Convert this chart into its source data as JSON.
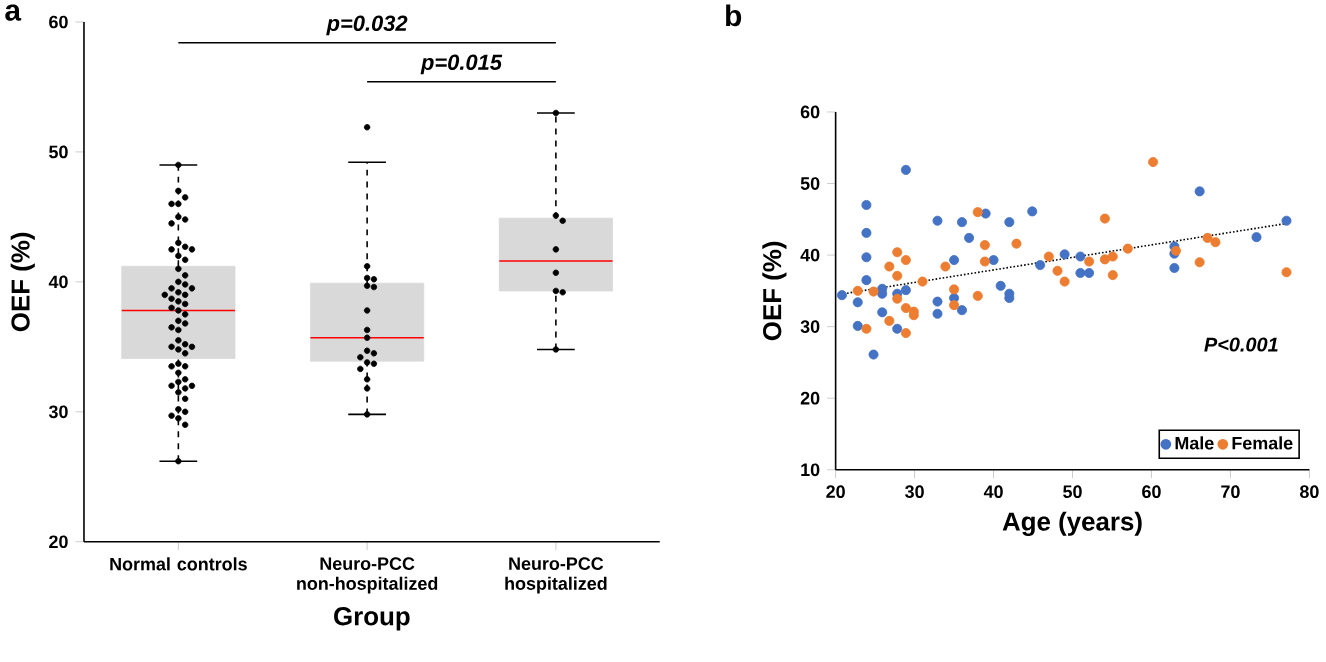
{
  "chart_data": [
    {
      "type": "box",
      "title": "a",
      "xlabel": "Group",
      "ylabel": "OEF (%)",
      "categories": [
        "Normal controls",
        "Neuro-PCC non-hospitalized",
        "Neuro-PCC hospitalized"
      ],
      "ylim": [
        20,
        60
      ],
      "yticks": [
        20,
        30,
        40,
        50,
        60
      ],
      "grid": false,
      "legend": false,
      "annotations": [
        "p=0.032",
        "p=0.015"
      ],
      "series": [
        {
          "type": "box",
          "color": "#d9d9d9",
          "boxes": [
            {
              "low": 26.2,
              "q1": 34.1,
              "median": 37.8,
              "q3": 41.2,
              "high": 49
            },
            {
              "low": 29.8,
              "q1": 33.9,
              "median": 35.7,
              "q3": 39.9,
              "high": 49.2
            },
            {
              "low": 34.8,
              "q1": 39.3,
              "median": 41.6,
              "q3": 44.9,
              "high": 53
            }
          ]
        },
        {
          "type": "scatter",
          "color": "#000000",
          "marker": "circle",
          "x": [
            "Normal controls",
            "Normal controls",
            "Normal controls",
            "Normal controls",
            "Normal controls",
            "Normal controls",
            "Normal controls",
            "Normal controls",
            "Normal controls",
            "Normal controls",
            "Normal controls",
            "Normal controls",
            "Normal controls",
            "Normal controls",
            "Normal controls",
            "Normal controls",
            "Normal controls",
            "Normal controls",
            "Normal controls",
            "Normal controls",
            "Normal controls",
            "Normal controls",
            "Normal controls",
            "Normal controls",
            "Normal controls",
            "Normal controls",
            "Normal controls",
            "Normal controls",
            "Normal controls",
            "Normal controls",
            "Normal controls",
            "Normal controls",
            "Normal controls",
            "Normal controls",
            "Normal controls",
            "Normal controls",
            "Normal controls",
            "Normal controls",
            "Normal controls",
            "Normal controls",
            "Normal controls",
            "Normal controls",
            "Normal controls",
            "Normal controls",
            "Normal controls",
            "Normal controls",
            "Normal controls",
            "Normal controls",
            "Normal controls",
            "Normal controls",
            "Normal controls",
            "Normal controls",
            "Normal controls",
            "Normal controls",
            "Normal controls",
            "Normal controls",
            "Neuro-PCC non-hospitalized",
            "Neuro-PCC non-hospitalized",
            "Neuro-PCC non-hospitalized",
            "Neuro-PCC non-hospitalized",
            "Neuro-PCC non-hospitalized",
            "Neuro-PCC non-hospitalized",
            "Neuro-PCC non-hospitalized",
            "Neuro-PCC non-hospitalized",
            "Neuro-PCC non-hospitalized",
            "Neuro-PCC non-hospitalized",
            "Neuro-PCC non-hospitalized",
            "Neuro-PCC non-hospitalized",
            "Neuro-PCC non-hospitalized",
            "Neuro-PCC non-hospitalized",
            "Neuro-PCC non-hospitalized",
            "Neuro-PCC non-hospitalized",
            "Neuro-PCC non-hospitalized",
            "Neuro-PCC non-hospitalized",
            "Neuro-PCC hospitalized",
            "Neuro-PCC hospitalized",
            "Neuro-PCC hospitalized",
            "Neuro-PCC hospitalized",
            "Neuro-PCC hospitalized",
            "Neuro-PCC hospitalized",
            "Neuro-PCC hospitalized",
            "Neuro-PCC hospitalized"
          ],
          "values": [
            49,
            47,
            46.5,
            46,
            46,
            45,
            44.8,
            44.5,
            43,
            42.7,
            42.5,
            42.5,
            42,
            41.7,
            41,
            40.5,
            40,
            39.8,
            39.5,
            39.5,
            39.2,
            39,
            39,
            38.7,
            38.5,
            38.3,
            38,
            37.8,
            37.5,
            37,
            36.8,
            36.5,
            36.3,
            35.5,
            35.2,
            35,
            35,
            34.8,
            34.5,
            33.7,
            33.5,
            33.5,
            33,
            32.5,
            32.3,
            32,
            32,
            31.8,
            31.5,
            31,
            30.2,
            30,
            29.7,
            29.5,
            29,
            26.2,
            51.9,
            41.2,
            40.3,
            40.2,
            39.7,
            39.6,
            37.8,
            36.3,
            35.7,
            34.7,
            34.5,
            34.2,
            33.8,
            33.7,
            33.3,
            32.5,
            31.8,
            29.8,
            53,
            45.1,
            44.7,
            42.5,
            40.7,
            39.3,
            39.2,
            34.8
          ]
        }
      ]
    },
    {
      "type": "scatter",
      "title": "b",
      "xlabel": "Age (years)",
      "ylabel": "OEF (%)",
      "xlim": [
        20,
        80
      ],
      "xticks": [
        20,
        30,
        40,
        50,
        60,
        70,
        80
      ],
      "ylim": [
        10,
        60
      ],
      "yticks": [
        10,
        20,
        30,
        40,
        50,
        60
      ],
      "grid": false,
      "legend": "bottom right",
      "marker": "circle",
      "annotations": [
        "P<0.001"
      ],
      "series": [
        {
          "name": "Male",
          "color": "#4472c4",
          "x": [
            20.8,
            22.8,
            22.8,
            23.9,
            23.9,
            23.9,
            23.9,
            24.8,
            25.9,
            25.9,
            25.9,
            27.8,
            27.8,
            28.9,
            28.9,
            32.9,
            32.9,
            32.9,
            35,
            35,
            36,
            36,
            36.9,
            39,
            40,
            40.9,
            42,
            42,
            42,
            44.9,
            45.9,
            49,
            51,
            51,
            52.1,
            62.9,
            62.9,
            62.9,
            66.1,
            73.3,
            77.1
          ],
          "values": [
            34.4,
            33.4,
            30.1,
            47,
            43.1,
            39.7,
            36.5,
            26.1,
            35.3,
            34.6,
            32,
            29.7,
            34.6,
            51.9,
            35.1,
            44.8,
            33.5,
            31.8,
            39.3,
            34,
            44.6,
            32.3,
            42.4,
            45.8,
            39.3,
            35.7,
            44.6,
            34.6,
            34,
            46.1,
            38.6,
            40.1,
            39.8,
            37.5,
            37.5,
            41.2,
            40.2,
            38.2,
            48.9,
            42.5,
            44.8
          ]
        },
        {
          "name": "Female",
          "color": "#ed7d31",
          "x": [
            22.8,
            23.9,
            24.8,
            26.8,
            26.8,
            27.8,
            27.8,
            27.8,
            28.9,
            28.9,
            28.9,
            29.9,
            29.9,
            31,
            33.9,
            35,
            35,
            38,
            38,
            38.9,
            38.9,
            42.9,
            47,
            48.1,
            49,
            52.1,
            54.1,
            54.1,
            55.1,
            55.1,
            57,
            60.2,
            63.1,
            66.1,
            67.1,
            68.1,
            77.1
          ],
          "values": [
            35,
            29.7,
            34.9,
            38.4,
            30.8,
            40.4,
            37.1,
            33.9,
            39.3,
            32.6,
            29.1,
            32.1,
            31.6,
            36.3,
            38.4,
            35.2,
            33,
            46,
            34.3,
            41.4,
            39.1,
            41.6,
            39.8,
            37.8,
            36.3,
            39.1,
            45.1,
            39.4,
            39.8,
            37.2,
            40.9,
            53,
            40.6,
            39,
            42.4,
            41.8,
            37.6
          ]
        },
        {
          "type": "line",
          "color": "#000000",
          "marker": "none",
          "line_style": "dotted",
          "x": [
            21,
            77
          ],
          "values": [
            34.6,
            44.4
          ]
        }
      ]
    }
  ]
}
